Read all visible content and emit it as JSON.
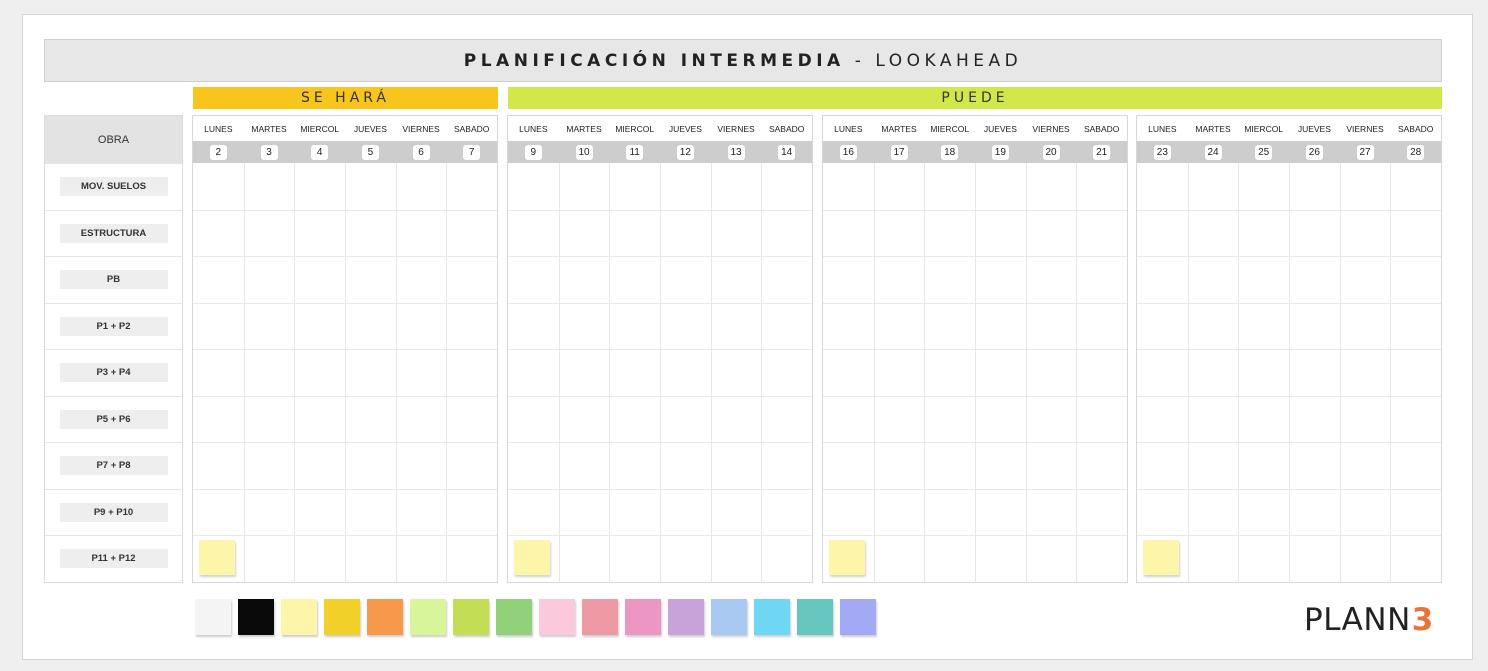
{
  "title": {
    "main": "PLANIFICACIÓN INTERMEDIA",
    "separator": "-",
    "sub": "LOOKAHEAD"
  },
  "bands": [
    {
      "label": "SE HARÁ",
      "color": "#f7c51c"
    },
    {
      "label": "PUEDE",
      "color": "#d2e84a"
    }
  ],
  "obra": {
    "header": "OBRA",
    "rows": [
      "MOV. SUELOS",
      "ESTRUCTURA",
      "PB",
      "P1 + P2",
      "P3 + P4",
      "P5 + P6",
      "P7 + P8",
      "P9 + P10",
      "P11 + P12"
    ]
  },
  "weeks": [
    {
      "days": [
        "LUNES",
        "MARTES",
        "MIERCOL",
        "JUEVES",
        "VIERNES",
        "SABADO"
      ],
      "dates": [
        "2",
        "3",
        "4",
        "5",
        "6",
        "7"
      ]
    },
    {
      "days": [
        "LUNES",
        "MARTES",
        "MIERCOL",
        "JUEVES",
        "VIERNES",
        "SABADO"
      ],
      "dates": [
        "9",
        "10",
        "11",
        "12",
        "13",
        "14"
      ]
    },
    {
      "days": [
        "LUNES",
        "MARTES",
        "MIERCOL",
        "JUEVES",
        "VIERNES",
        "SABADO"
      ],
      "dates": [
        "16",
        "17",
        "18",
        "19",
        "20",
        "21"
      ]
    },
    {
      "days": [
        "LUNES",
        "MARTES",
        "MIERCOL",
        "JUEVES",
        "VIERNES",
        "SABADO"
      ],
      "dates": [
        "23",
        "24",
        "25",
        "26",
        "27",
        "28"
      ]
    }
  ],
  "sticky_color": "#fdf6aa",
  "palette": [
    "#f4f4f4",
    "#0a0a0a",
    "#fdf6aa",
    "#f2d02a",
    "#f7994a",
    "#d9f59a",
    "#c3de55",
    "#93d07a",
    "#fac9dc",
    "#ee9aa4",
    "#ec96c3",
    "#c8a3d9",
    "#a9c9f2",
    "#6fd6f3",
    "#64c6bc",
    "#a3a9f5"
  ],
  "logo": {
    "text": "PLANN",
    "digit": "3",
    "digit_color": "#e8743b"
  }
}
